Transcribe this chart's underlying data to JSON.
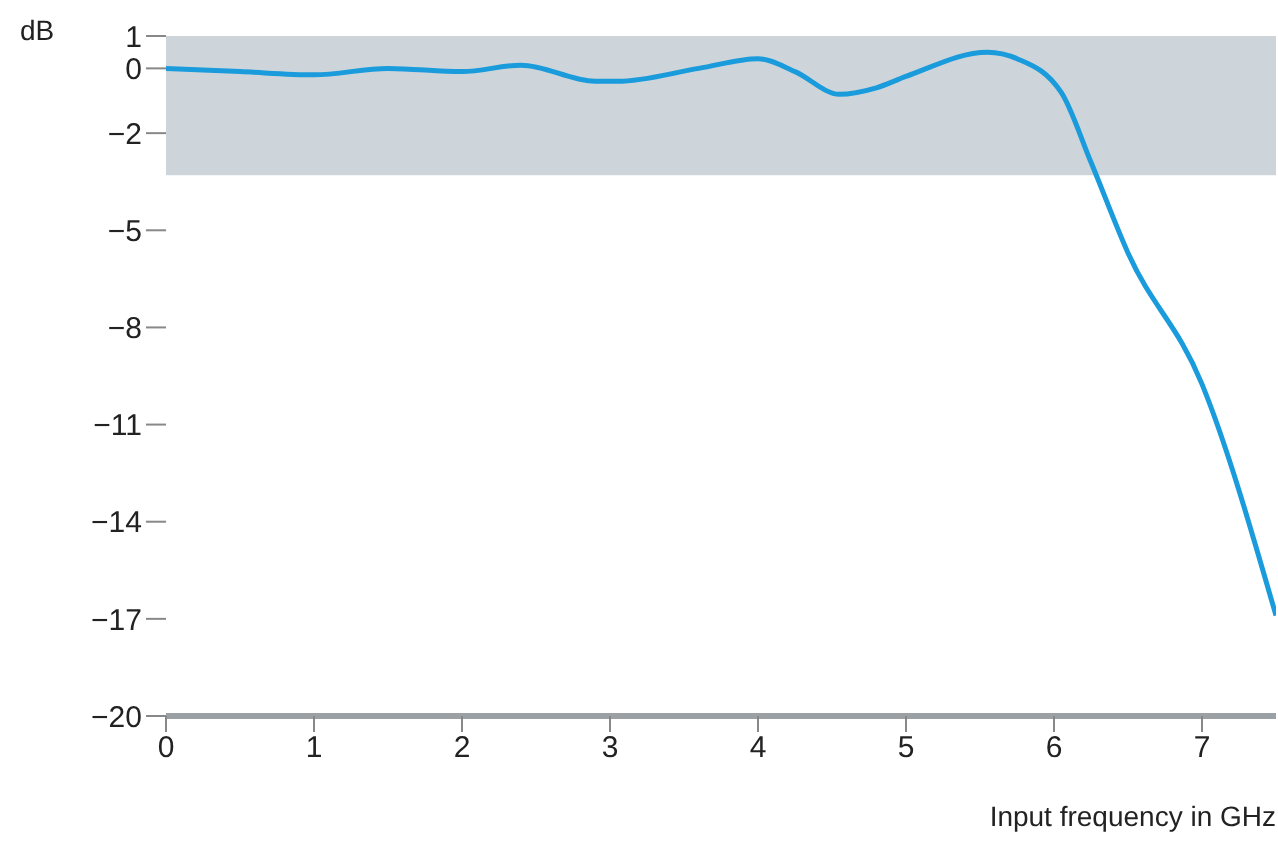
{
  "chart_data": {
    "type": "line",
    "xlabel": "Input frequency in GHz",
    "ylabel": "dB",
    "x": [
      0,
      0.5,
      1,
      1.5,
      2,
      2.4,
      2.9,
      3.05,
      3.6,
      4.0,
      4.25,
      4.55,
      4.8,
      5.0,
      5.55,
      5.75,
      6.05,
      6.25,
      6.5,
      7.0,
      7.5
    ],
    "series": [
      {
        "color": "#1a9bdc",
        "values": [
          0.0,
          -0.1,
          -0.2,
          0.0,
          -0.1,
          0.1,
          -0.4,
          -0.4,
          0.0,
          0.3,
          -0.1,
          -0.8,
          -0.6,
          -0.25,
          0.5,
          0.3,
          -0.75,
          -2.9,
          -5.7,
          -9.75,
          -16.9
        ]
      }
    ],
    "xlim": [
      0,
      7.5
    ],
    "xticks": [
      0,
      1,
      2,
      3,
      4,
      5,
      6,
      7
    ],
    "ylim": [
      -20,
      1
    ],
    "yticks": [
      1,
      0,
      -2,
      -5,
      -8,
      -11,
      -14,
      -17,
      -20
    ],
    "bands": [
      {
        "axis": "y",
        "from": -3.3,
        "to": 1,
        "color": "#cdd5da"
      }
    ],
    "grid": false,
    "legend": false,
    "marker": "none",
    "line_style": "solid"
  }
}
